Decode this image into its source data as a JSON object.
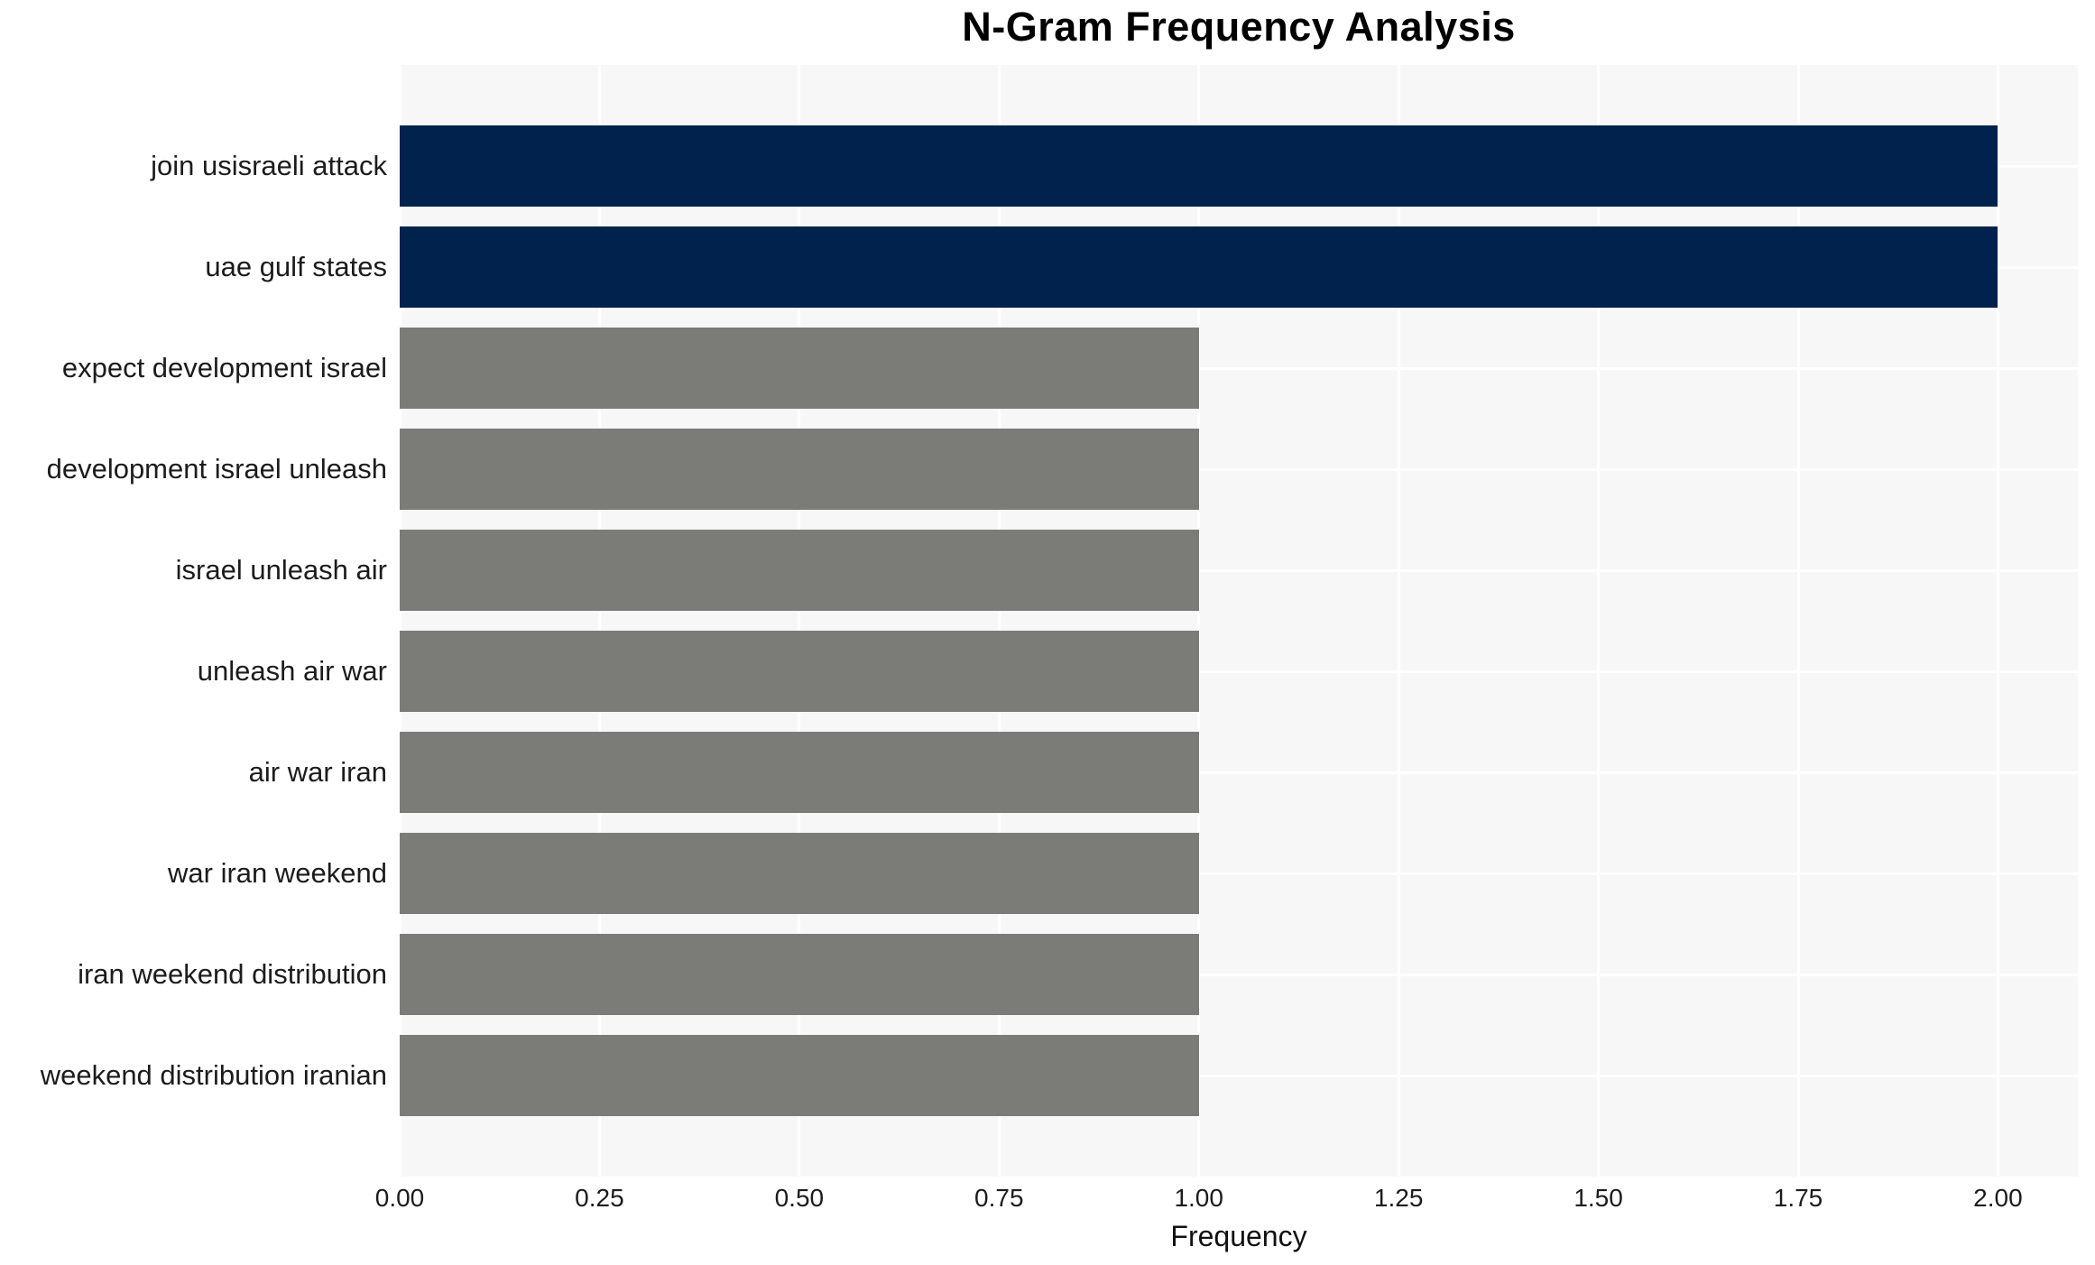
{
  "title": "N-Gram Frequency Analysis",
  "xaxis": {
    "label": "Frequency",
    "tick_labels": [
      "0.00",
      "0.25",
      "0.50",
      "0.75",
      "1.00",
      "1.25",
      "1.50",
      "1.75",
      "2.00"
    ],
    "tick_values": [
      0,
      0.25,
      0.5,
      0.75,
      1.0,
      1.25,
      1.5,
      1.75,
      2.0
    ]
  },
  "colors": {
    "highlight_bar": "#01224d",
    "default_bar": "#7b7b78",
    "plot_background": "#f7f7f7",
    "gridline": "#ffffff",
    "text": "#1c1c1c"
  },
  "chart_data": {
    "type": "bar",
    "orientation": "horizontal",
    "title": "N-Gram Frequency Analysis",
    "xlabel": "Frequency",
    "ylabel": "",
    "xlim": [
      0,
      2.1
    ],
    "grid": "on",
    "legend": "none",
    "categories": [
      "join usisraeli attack",
      "uae gulf states",
      "expect development israel",
      "development israel unleash",
      "israel unleash air",
      "unleash air war",
      "air war iran",
      "war iran weekend",
      "iran weekend distribution",
      "weekend distribution iranian"
    ],
    "values": [
      2,
      2,
      1,
      1,
      1,
      1,
      1,
      1,
      1,
      1
    ],
    "bar_colors": [
      "#01224d",
      "#01224d",
      "#7b7b78",
      "#7b7b78",
      "#7b7b78",
      "#7b7b78",
      "#7b7b78",
      "#7b7b78",
      "#7b7b78",
      "#7b7b78"
    ]
  }
}
